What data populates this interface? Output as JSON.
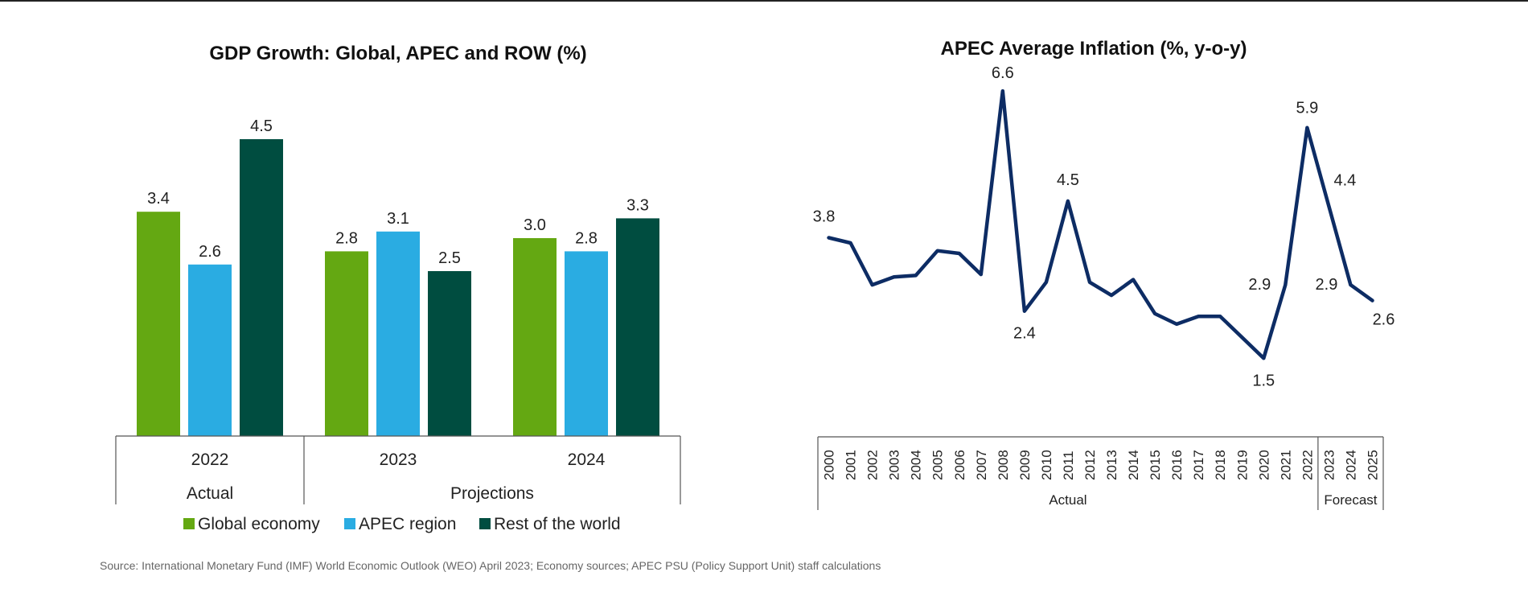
{
  "colors": {
    "global": "#64A812",
    "apec": "#2AACE2",
    "row": "#004D40",
    "line": "#0D2C64"
  },
  "source": "Source: International Monetary Fund (IMF) World Economic Outlook (WEO) April 2023; Economy sources; APEC PSU (Policy Support Unit) staff calculations",
  "chart_data": [
    {
      "type": "bar",
      "title": "GDP Growth: Global, APEC and ROW (%)",
      "categories": [
        "2022",
        "2023",
        "2024"
      ],
      "category_groups": [
        {
          "label": "Actual",
          "categories": [
            "2022"
          ]
        },
        {
          "label": "Projections",
          "categories": [
            "2023",
            "2024"
          ]
        }
      ],
      "series": [
        {
          "name": "Global economy",
          "values": [
            3.4,
            2.8,
            3.0
          ],
          "labels": [
            "3.4",
            "2.8",
            "3.0"
          ]
        },
        {
          "name": "APEC region",
          "values": [
            2.6,
            3.1,
            2.8
          ],
          "labels": [
            "2.6",
            "3.1",
            "2.8"
          ]
        },
        {
          "name": "Rest of the world",
          "values": [
            4.5,
            2.5,
            3.3
          ],
          "labels": [
            "4.5",
            "2.5",
            "3.3"
          ]
        }
      ],
      "ylim": [
        0,
        5
      ],
      "grid": false,
      "legend": "bottom"
    },
    {
      "type": "line",
      "title": "APEC Average Inflation (%, y-o-y)",
      "x": [
        "2000",
        "2001",
        "2002",
        "2003",
        "2004",
        "2005",
        "2006",
        "2007",
        "2008",
        "2009",
        "2010",
        "2011",
        "2012",
        "2013",
        "2014",
        "2015",
        "2016",
        "2017",
        "2018",
        "2019",
        "2020",
        "2021",
        "2022",
        "2023",
        "2024",
        "2025"
      ],
      "category_groups": [
        {
          "label": "Actual",
          "count": 23
        },
        {
          "label": "Forecast",
          "count": 3
        }
      ],
      "series": [
        {
          "values": [
            3.8,
            3.7,
            2.9,
            3.05,
            3.08,
            3.55,
            3.5,
            3.1,
            6.6,
            2.4,
            2.95,
            4.5,
            2.95,
            2.7,
            3.0,
            2.35,
            2.15,
            2.3,
            2.3,
            1.9,
            1.5,
            2.9,
            5.9,
            4.4,
            2.9,
            2.6
          ]
        }
      ],
      "data_labels": [
        {
          "index": 0,
          "text": "3.8"
        },
        {
          "index": 8,
          "text": "6.6"
        },
        {
          "index": 9,
          "text": "2.4"
        },
        {
          "index": 11,
          "text": "4.5"
        },
        {
          "index": 20,
          "text": "1.5"
        },
        {
          "index": 21,
          "text": "2.9"
        },
        {
          "index": 22,
          "text": "5.9"
        },
        {
          "index": 23,
          "text": "4.4"
        },
        {
          "index": 24,
          "text": "2.9"
        },
        {
          "index": 25,
          "text": "2.6"
        }
      ],
      "ylim": [
        0,
        7
      ],
      "grid": false,
      "legend": "none"
    }
  ]
}
